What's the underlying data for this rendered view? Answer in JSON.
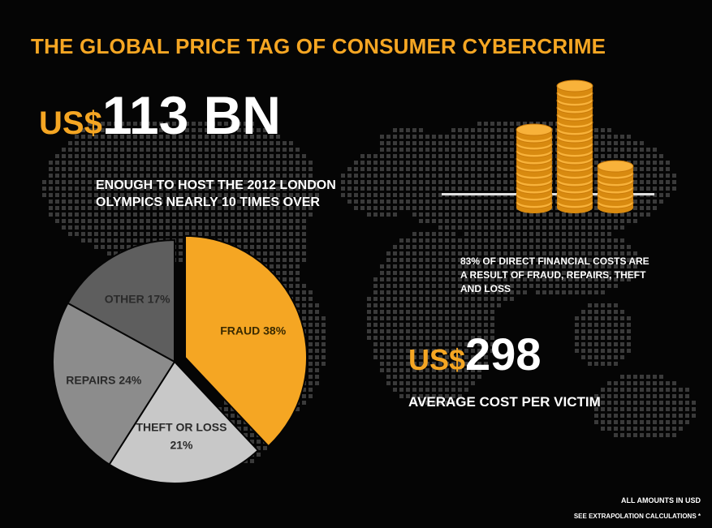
{
  "title": "THE GLOBAL PRICE TAG OF CONSUMER CYBERCRIME",
  "total": {
    "currency": "US$",
    "amount": "113 BN"
  },
  "comparison": "ENOUGH TO HOST THE 2012 LONDON OLYMPICS NEARLY 10 TIMES OVER",
  "share_note": "83% OF DIRECT FINANCIAL COSTS ARE A RESULT OF FRAUD, REPAIRS, THEFT AND LOSS",
  "average": {
    "currency": "US$",
    "amount": "298",
    "label": "AVERAGE COST PER VICTIM"
  },
  "footnotes": {
    "amounts": "ALL AMOUNTS IN USD",
    "extrapolation": "SEE EXTRAPOLATION CALCULATIONS *"
  },
  "colors": {
    "accent": "#f5a623",
    "background": "#050505",
    "text": "#ffffff"
  },
  "icons": {
    "map": "world-map-dots",
    "coins": "coin-stacks"
  },
  "chart_data": {
    "type": "pie",
    "slices": [
      {
        "label": "FRAUD 38%",
        "value": 38,
        "color": "#f5a623",
        "exploded": true,
        "label_color": "#3a2a00"
      },
      {
        "label": "THEFT OR LOSS 21%",
        "value": 21,
        "color": "#c8c8c8",
        "exploded": false,
        "label_color": "#2a2a2a"
      },
      {
        "label": "REPAIRS 24%",
        "value": 24,
        "color": "#8c8c8c",
        "exploded": false,
        "label_color": "#2a2a2a"
      },
      {
        "label": "OTHER 17%",
        "value": 17,
        "color": "#5e5e5e",
        "exploded": false,
        "label_color": "#2a2a2a"
      }
    ],
    "start_angle": 0,
    "direction": "clockwise",
    "legend": "none"
  }
}
